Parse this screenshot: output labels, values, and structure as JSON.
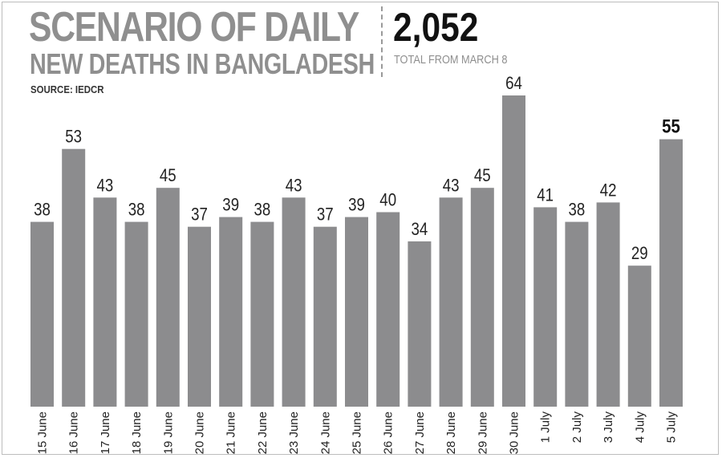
{
  "header": {
    "title": "SCENARIO OF DAILY",
    "subtitle": "NEW DEATHS IN BANGLADESH",
    "source": "SOURCE: IEDCR",
    "total_value": "2,052",
    "total_label": "TOTAL FROM MARCH 8"
  },
  "colors": {
    "bar": "#8c8c8e",
    "title": "#8f8f8f"
  },
  "chart_data": {
    "type": "bar",
    "title": "SCENARIO OF DAILY NEW DEATHS IN BANGLADESH",
    "categories": [
      "15 June",
      "16 June",
      "17 June",
      "18 June",
      "19 June",
      "20 June",
      "21 June",
      "22 June",
      "23 June",
      "24 June",
      "25 June",
      "26 June",
      "27 June",
      "28 June",
      "29 June",
      "30 June",
      "1 July",
      "2 July",
      "3 July",
      "4 July",
      "5 July"
    ],
    "values": [
      38,
      53,
      43,
      38,
      45,
      37,
      39,
      38,
      43,
      37,
      39,
      40,
      34,
      43,
      45,
      64,
      41,
      38,
      42,
      29,
      55
    ],
    "highlight_last": true,
    "ylim": [
      0,
      64
    ],
    "grid": false,
    "legend": "none"
  }
}
